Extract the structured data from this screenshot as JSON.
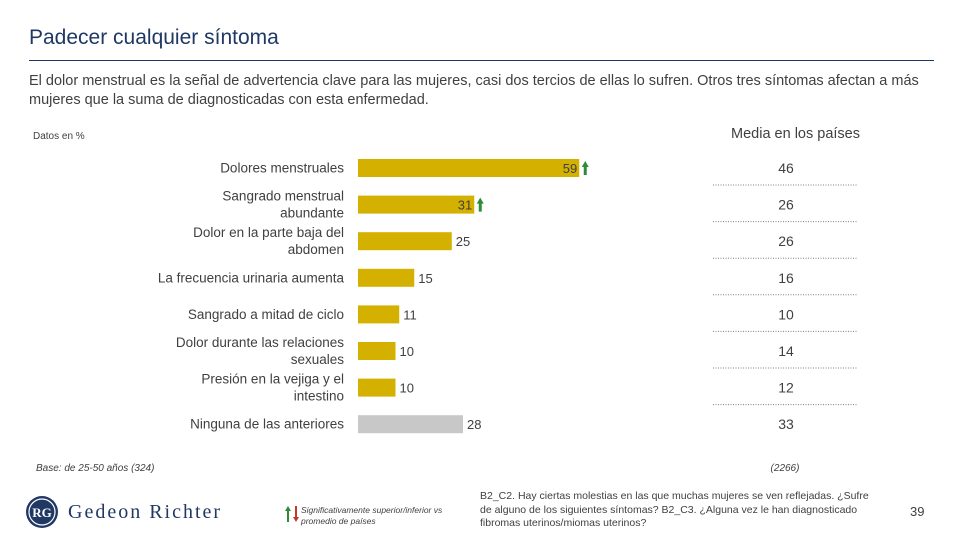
{
  "header": {
    "title": "Padecer cualquier síntoma",
    "subtitle": "El dolor menstrual es la señal de advertencia clave para las mujeres, casi dos tercios de ellas lo sufren. Otros tres síntomas afectan a más mujeres que la suma de diagnosticadas con esta enfermedad."
  },
  "chart_data": {
    "type": "bar",
    "orientation": "horizontal",
    "units_label": "Datos en %",
    "categories": [
      [
        "Dolores menstruales"
      ],
      [
        "Sangrado menstrual",
        "abundante"
      ],
      [
        "Dolor en la parte baja del",
        "abdomen"
      ],
      [
        "La frecuencia urinaria aumenta"
      ],
      [
        "Sangrado a mitad de ciclo"
      ],
      [
        "Dolor durante las relaciones",
        "sexuales"
      ],
      [
        "Presión en la vejiga y el",
        "intestino"
      ],
      [
        "Ninguna de las anteriores"
      ]
    ],
    "values": [
      59,
      31,
      25,
      15,
      11,
      10,
      10,
      28
    ],
    "significance": [
      "up",
      "up",
      "",
      "",
      "",
      "",
      "",
      ""
    ],
    "bar_colors": [
      "#d4b100",
      "#d4b100",
      "#d4b100",
      "#d4b100",
      "#d4b100",
      "#d4b100",
      "#d4b100",
      "#c8c8c8"
    ],
    "xlim": [
      0,
      60
    ],
    "media": {
      "title": "Media en los países",
      "values": [
        46,
        26,
        26,
        16,
        10,
        14,
        12,
        33
      ],
      "base": "(2266)"
    },
    "base": "Base: de 25-50 años (324)"
  },
  "footer": {
    "brand": "Gedeon Richter",
    "logo_initials": "RG",
    "legend_text": "Significativamente superior/inferior vs promedio de países",
    "note": "B2_C2. Hay ciertas molestias en las que muchas mujeres se ven reflejadas. ¿Sufre de alguno de los siguientes síntomas? B2_C3. ¿Alguna vez le han diagnosticado fibromas uterinos/miomas uterinos?",
    "page_number": "39"
  },
  "colors": {
    "accent": "#1f3864",
    "bar": "#d4b100",
    "bar_none": "#c8c8c8",
    "up_arrow": "#2e8b3a",
    "down_arrow": "#c0392b"
  }
}
